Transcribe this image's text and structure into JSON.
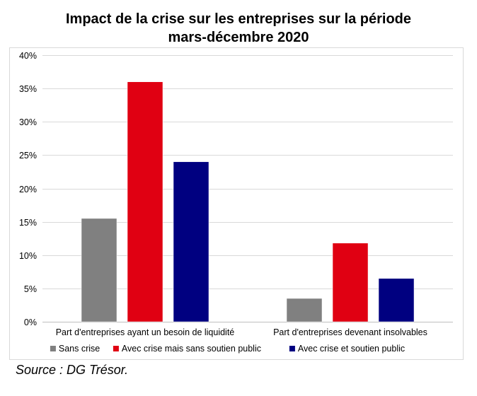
{
  "chart_data": {
    "type": "bar",
    "title_lines": [
      "Impact de la crise sur les entreprises sur la période",
      "mars-décembre 2020"
    ],
    "categories": [
      "Part d'entreprises ayant un besoin de liquidité",
      "Part d'entreprises  devenant insolvables"
    ],
    "series": [
      {
        "name": "Sans crise",
        "values": [
          15.5,
          3.5
        ],
        "color": "#808080"
      },
      {
        "name": "Avec crise mais sans soutien public",
        "values": [
          36,
          11.8
        ],
        "color": "#e00012"
      },
      {
        "name": "Avec crise et soutien public",
        "values": [
          24,
          6.5
        ],
        "color": "#000080"
      }
    ],
    "ylim": [
      0,
      40
    ],
    "yticks": [
      0,
      5,
      10,
      15,
      20,
      25,
      30,
      35,
      40
    ],
    "ytick_labels": [
      "0%",
      "5%",
      "10%",
      "15%",
      "20%",
      "25%",
      "30%",
      "35%",
      "40%"
    ],
    "grid": true,
    "legend_position": "bottom"
  },
  "source": "Source : DG Trésor."
}
